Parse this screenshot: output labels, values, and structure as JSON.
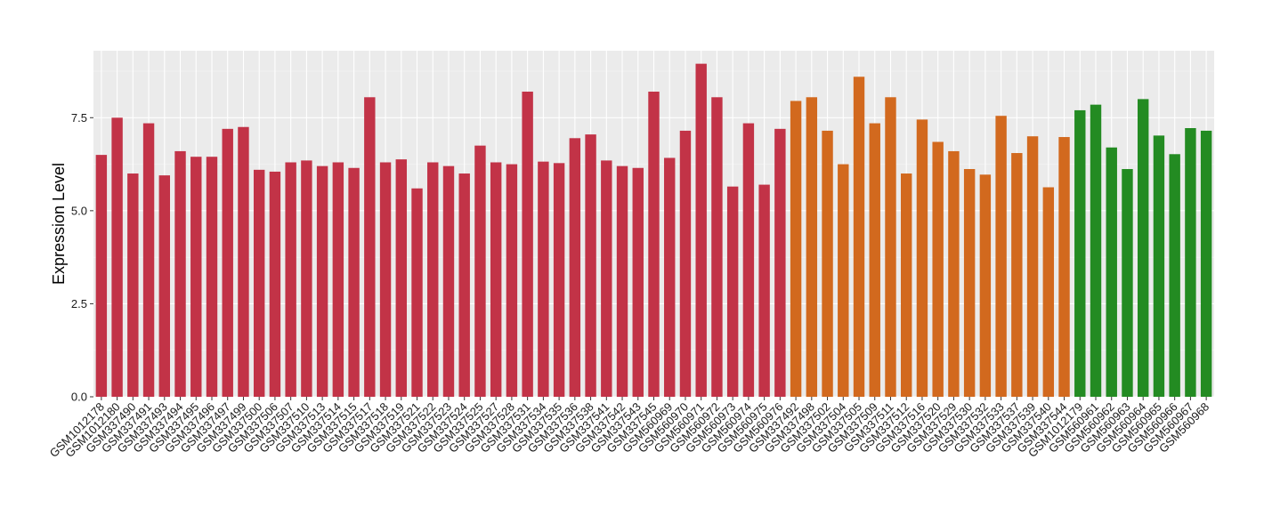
{
  "chart_data": {
    "type": "bar",
    "title": "",
    "xlabel": "",
    "ylabel": "Expression Level",
    "ylim": [
      0,
      9.3
    ],
    "yticks": [
      0.0,
      2.5,
      5.0,
      7.5
    ],
    "ytick_labels": [
      "0.0",
      "2.5",
      "5.0",
      "7.5"
    ],
    "grid": true,
    "legend": "none",
    "background_color": "#ebebeb",
    "categories": [
      "GSM1012178",
      "GSM1012180",
      "GSM337490",
      "GSM337491",
      "GSM337493",
      "GSM337494",
      "GSM337495",
      "GSM337496",
      "GSM337497",
      "GSM337499",
      "GSM337500",
      "GSM337506",
      "GSM337507",
      "GSM337510",
      "GSM337513",
      "GSM337514",
      "GSM337515",
      "GSM337517",
      "GSM337518",
      "GSM337519",
      "GSM337521",
      "GSM337522",
      "GSM337523",
      "GSM337524",
      "GSM337525",
      "GSM337527",
      "GSM337528",
      "GSM337531",
      "GSM337534",
      "GSM337535",
      "GSM337536",
      "GSM337538",
      "GSM337541",
      "GSM337542",
      "GSM337543",
      "GSM337545",
      "GSM560969",
      "GSM560970",
      "GSM560971",
      "GSM560972",
      "GSM560973",
      "GSM560974",
      "GSM560975",
      "GSM560976",
      "GSM337492",
      "GSM337498",
      "GSM337502",
      "GSM337504",
      "GSM337505",
      "GSM337509",
      "GSM337511",
      "GSM337512",
      "GSM337516",
      "GSM337520",
      "GSM337529",
      "GSM337530",
      "GSM337532",
      "GSM337533",
      "GSM337537",
      "GSM337539",
      "GSM337540",
      "GSM337544",
      "GSM1012179",
      "GSM560961",
      "GSM560962",
      "GSM560963",
      "GSM560964",
      "GSM560965",
      "GSM560966",
      "GSM560967",
      "GSM560968"
    ],
    "values": [
      6.5,
      7.5,
      6.0,
      7.35,
      5.95,
      6.6,
      6.45,
      6.45,
      7.2,
      7.25,
      6.1,
      6.05,
      6.3,
      6.35,
      6.2,
      6.3,
      6.15,
      8.05,
      6.3,
      6.38,
      5.6,
      6.3,
      6.2,
      6.0,
      6.75,
      6.3,
      6.25,
      8.2,
      6.32,
      6.28,
      6.95,
      7.05,
      6.35,
      6.2,
      6.15,
      8.2,
      6.42,
      7.15,
      8.95,
      8.05,
      5.65,
      7.35,
      5.7,
      7.2,
      7.95,
      8.05,
      7.15,
      6.25,
      8.6,
      7.35,
      8.05,
      6.0,
      7.45,
      6.85,
      6.6,
      6.12,
      5.97,
      7.55,
      6.55,
      7.0,
      5.63,
      6.98,
      7.7,
      7.85,
      6.7,
      6.12,
      8.0,
      7.02,
      6.52,
      7.22,
      7.15
    ],
    "colors": [
      "#c23347",
      "#c23347",
      "#c23347",
      "#c23347",
      "#c23347",
      "#c23347",
      "#c23347",
      "#c23347",
      "#c23347",
      "#c23347",
      "#c23347",
      "#c23347",
      "#c23347",
      "#c23347",
      "#c23347",
      "#c23347",
      "#c23347",
      "#c23347",
      "#c23347",
      "#c23347",
      "#c23347",
      "#c23347",
      "#c23347",
      "#c23347",
      "#c23347",
      "#c23347",
      "#c23347",
      "#c23347",
      "#c23347",
      "#c23347",
      "#c23347",
      "#c23347",
      "#c23347",
      "#c23347",
      "#c23347",
      "#c23347",
      "#c23347",
      "#c23347",
      "#c23347",
      "#c23347",
      "#c23347",
      "#c23347",
      "#c23347",
      "#c23347",
      "#d2691e",
      "#d2691e",
      "#d2691e",
      "#d2691e",
      "#d2691e",
      "#d2691e",
      "#d2691e",
      "#d2691e",
      "#d2691e",
      "#d2691e",
      "#d2691e",
      "#d2691e",
      "#d2691e",
      "#d2691e",
      "#d2691e",
      "#d2691e",
      "#d2691e",
      "#d2691e",
      "#238b22",
      "#238b22",
      "#238b22",
      "#238b22",
      "#238b22",
      "#238b22",
      "#238b22",
      "#238b22",
      "#238b22"
    ]
  }
}
